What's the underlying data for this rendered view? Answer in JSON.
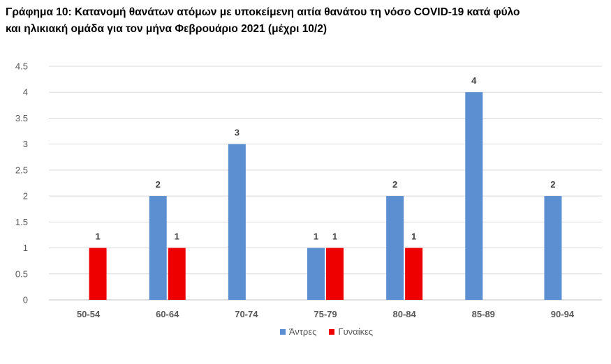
{
  "chart_data": {
    "type": "bar",
    "title_lines": [
      "Γράφημα 10: Κατανομή θανάτων ατόμων με υποκείμενη αιτία θανάτου τη νόσο COVID-19 κατά φύλο",
      "και ηλικιακή ομάδα για τον μήνα Φεβρουάριο 2021 (μέχρι 10/2)"
    ],
    "categories": [
      "50-54",
      "60-64",
      "70-74",
      "75-79",
      "80-84",
      "85-89",
      "90-94"
    ],
    "series": [
      {
        "name": "Άντρες",
        "color": "#5B8FD1",
        "values": [
          0,
          2,
          3,
          1,
          2,
          4,
          2
        ]
      },
      {
        "name": "Γυναίκες",
        "color": "#EE0000",
        "values": [
          1,
          1,
          0,
          1,
          1,
          0,
          0
        ]
      }
    ],
    "ylim": [
      0,
      4.5
    ],
    "yticks": [
      "0",
      "0.5",
      "1",
      "1.5",
      "2",
      "2.5",
      "3",
      "3.5",
      "4",
      "4.5"
    ],
    "grid": true,
    "legend_position": "bottom"
  }
}
